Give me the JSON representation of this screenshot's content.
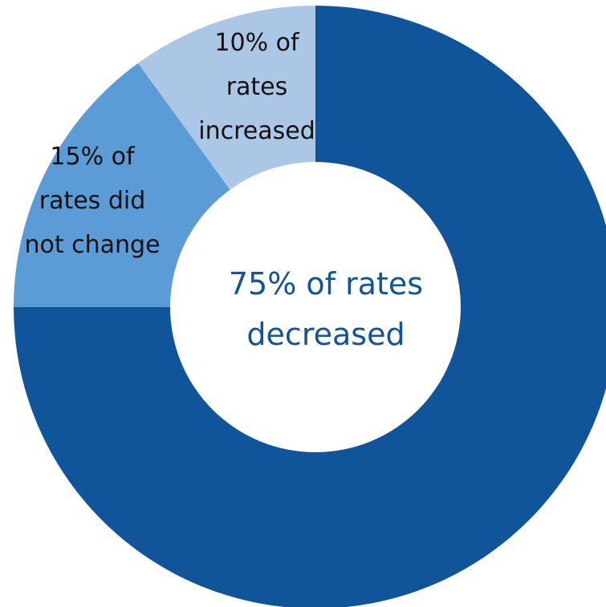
{
  "chart_data": {
    "type": "pie",
    "donut": true,
    "start": "12 o'clock",
    "direction": "clockwise",
    "slices": [
      {
        "label": "decreased",
        "value": 75,
        "color": "#10549a",
        "label_lines": []
      },
      {
        "label": "did not change",
        "value": 15,
        "color": "#5b9bd6",
        "label_lines": [
          "15% of",
          "rates did",
          "not change"
        ]
      },
      {
        "label": "increased",
        "value": 10,
        "color": "#acc6e6",
        "label_lines": [
          "10% of",
          "rates",
          "increased"
        ]
      }
    ],
    "center_label": {
      "lines": [
        "75% of rates",
        "decreased"
      ],
      "color": "#10549a"
    }
  }
}
